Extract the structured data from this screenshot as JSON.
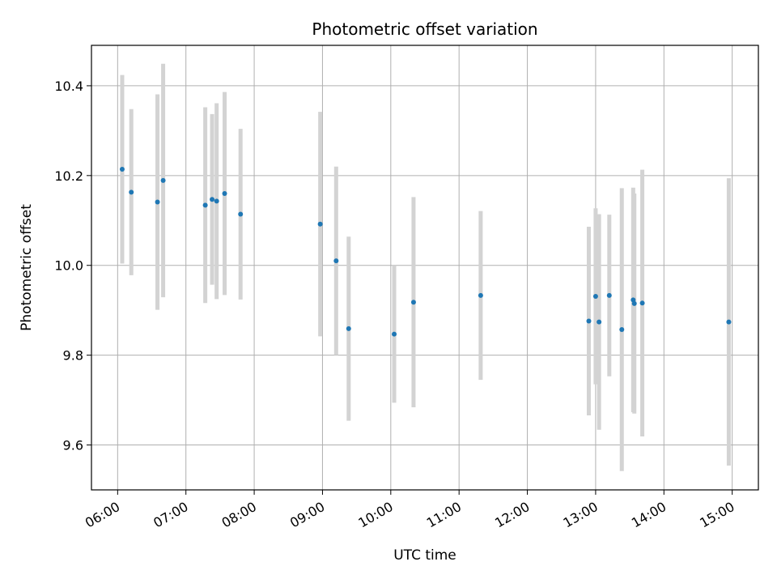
{
  "chart_data": {
    "type": "scatter",
    "title": "Photometric offset variation",
    "xlabel": "UTC time",
    "ylabel": "Photometric offset",
    "x_axis_kind": "time",
    "xlim": [
      "05:37",
      "15:23"
    ],
    "ylim": [
      9.5,
      10.49
    ],
    "grid": true,
    "x_ticks": [
      "06:00",
      "07:00",
      "08:00",
      "09:00",
      "10:00",
      "11:00",
      "12:00",
      "13:00",
      "14:00",
      "15:00"
    ],
    "y_ticks": [
      "9.6",
      "9.8",
      "10.0",
      "10.2",
      "10.4"
    ],
    "point_color": "#1f77b4",
    "errorbar_color": "#d3d3d3",
    "points": [
      {
        "t": "06:04",
        "y": 10.214,
        "err": 0.21
      },
      {
        "t": "06:12",
        "y": 10.163,
        "err": 0.185
      },
      {
        "t": "06:35",
        "y": 10.141,
        "err": 0.24
      },
      {
        "t": "06:40",
        "y": 10.189,
        "err": 0.26
      },
      {
        "t": "07:17",
        "y": 10.134,
        "err": 0.218
      },
      {
        "t": "07:23",
        "y": 10.147,
        "err": 0.19
      },
      {
        "t": "07:27",
        "y": 10.143,
        "err": 0.218
      },
      {
        "t": "07:34",
        "y": 10.16,
        "err": 0.226
      },
      {
        "t": "07:48",
        "y": 10.114,
        "err": 0.19
      },
      {
        "t": "08:58",
        "y": 10.092,
        "err": 0.25
      },
      {
        "t": "09:12",
        "y": 10.01,
        "err": 0.21
      },
      {
        "t": "09:23",
        "y": 9.859,
        "err": 0.205
      },
      {
        "t": "10:03",
        "y": 9.847,
        "err": 0.153
      },
      {
        "t": "10:20",
        "y": 9.918,
        "err": 0.234
      },
      {
        "t": "11:19",
        "y": 9.933,
        "err": 0.188
      },
      {
        "t": "12:54",
        "y": 9.876,
        "err": 0.21
      },
      {
        "t": "13:00",
        "y": 9.931,
        "err": 0.196
      },
      {
        "t": "13:03",
        "y": 9.874,
        "err": 0.24
      },
      {
        "t": "13:12",
        "y": 9.933,
        "err": 0.18
      },
      {
        "t": "13:23",
        "y": 9.857,
        "err": 0.315
      },
      {
        "t": "13:33",
        "y": 9.923,
        "err": 0.25
      },
      {
        "t": "13:34",
        "y": 9.915,
        "err": 0.245
      },
      {
        "t": "13:41",
        "y": 9.916,
        "err": 0.297
      },
      {
        "t": "14:57",
        "y": 9.874,
        "err": 0.32
      }
    ]
  }
}
